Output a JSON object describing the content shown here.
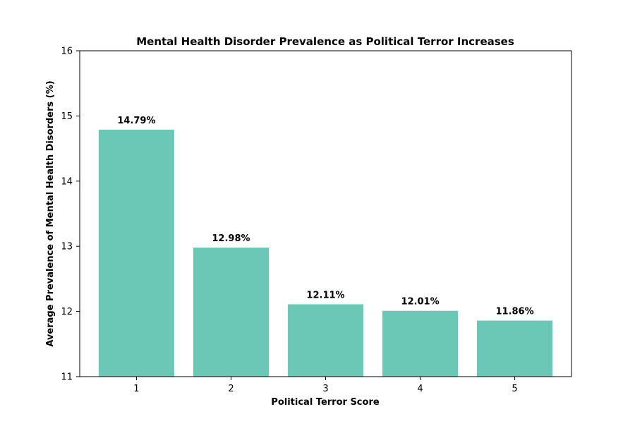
{
  "chart_data": {
    "type": "bar",
    "title": "Mental Health Disorder Prevalence as Political Terror Increases",
    "xlabel": "Political Terror Score",
    "ylabel": "Average Prevalence of Mental Health Disorders (%)",
    "categories": [
      "1",
      "2",
      "3",
      "4",
      "5"
    ],
    "values": [
      14.79,
      12.98,
      12.11,
      12.01,
      11.86
    ],
    "data_labels": [
      "14.79%",
      "12.98%",
      "12.11%",
      "12.01%",
      "11.86%"
    ],
    "ylim": [
      11,
      16
    ],
    "yticks": [
      "11",
      "12",
      "13",
      "14",
      "15",
      "16"
    ],
    "grid": false,
    "legend": "none",
    "bar_color": "#6bc7b6"
  }
}
